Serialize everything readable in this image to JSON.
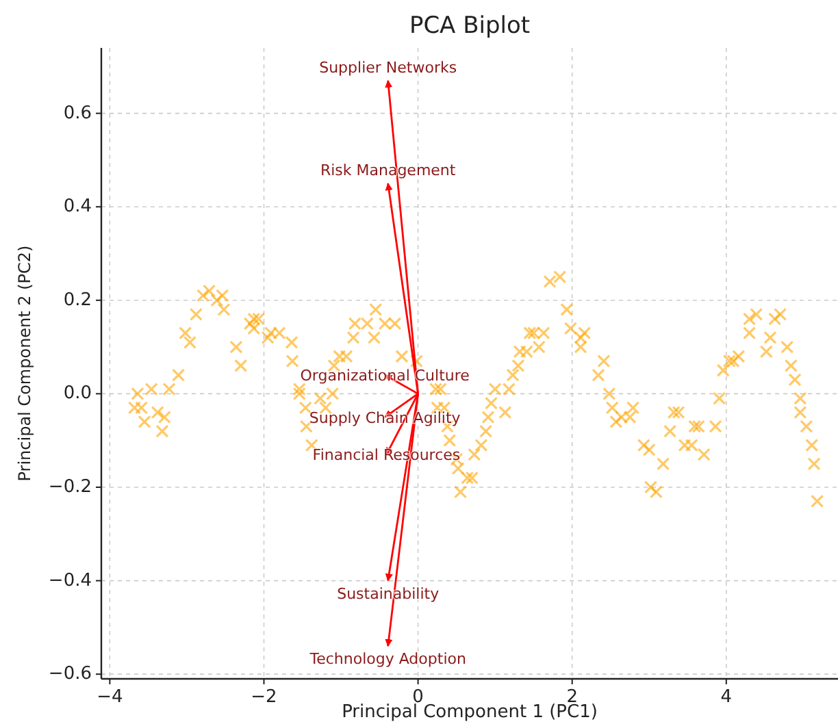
{
  "chart_data": {
    "type": "scatter",
    "title": "PCA Biplot",
    "xlabel": "Principal Component 1 (PC1)",
    "ylabel": "Principal Component 2 (PC2)",
    "xlim": [
      -4.11,
      5.45
    ],
    "ylim": [
      -0.61,
      0.74
    ],
    "xticks": [
      {
        "value": -4,
        "label": "−4"
      },
      {
        "value": -2,
        "label": "−2"
      },
      0,
      2,
      4
    ],
    "yticks": [
      {
        "value": -0.6,
        "label": "−0.6"
      },
      {
        "value": -0.4,
        "label": "−0.4"
      },
      {
        "value": -0.2,
        "label": "−0.2"
      },
      {
        "value": 0,
        "label": "0.0"
      },
      0.2,
      0.4,
      0.6
    ],
    "grid": true,
    "series": [
      {
        "color": "#ffa500",
        "marker": "cross",
        "x": [
          -3.64,
          -3.68,
          -3.59,
          -3.55,
          -3.38,
          -3.29,
          -3.32,
          -3.46,
          -3.23,
          -3.11,
          -3.02,
          -2.96,
          -2.88,
          -2.79,
          -2.71,
          -2.61,
          -2.54,
          -2.52,
          -2.36,
          -2.3,
          -2.18,
          -2.13,
          -2.07,
          -2.13,
          -1.95,
          -1.91,
          -1.8,
          -1.64,
          -1.63,
          -1.54,
          -1.54,
          -1.46,
          -1.45,
          -1.38,
          -1.27,
          -1.2,
          -1.11,
          -1.09,
          -1.02,
          -0.93,
          -0.84,
          -0.82,
          -0.66,
          -0.55,
          -0.57,
          -0.43,
          -0.3,
          -0.21,
          -0.02,
          0.23,
          0.29,
          0.25,
          0.34,
          0.38,
          0.41,
          0.5,
          0.52,
          0.55,
          0.64,
          0.7,
          0.73,
          0.82,
          0.88,
          0.91,
          0.95,
          1.0,
          1.13,
          1.18,
          1.23,
          1.3,
          1.32,
          1.41,
          1.45,
          1.5,
          1.57,
          1.63,
          1.71,
          1.84,
          1.93,
          1.98,
          2.11,
          2.16,
          2.11,
          2.34,
          2.41,
          2.48,
          2.52,
          2.57,
          2.64,
          2.75,
          2.79,
          2.93,
          3.0,
          3.02,
          3.09,
          3.18,
          3.27,
          3.32,
          3.38,
          3.46,
          3.55,
          3.59,
          3.64,
          3.71,
          3.86,
          3.91,
          3.96,
          4.04,
          4.09,
          4.16,
          4.3,
          4.3,
          4.39,
          4.52,
          4.57,
          4.63,
          4.7,
          4.79,
          4.84,
          4.89,
          4.96,
          4.96,
          5.04,
          5.11,
          5.14,
          5.18
        ],
        "values": [
          0.0,
          -0.03,
          -0.03,
          -0.06,
          -0.04,
          -0.05,
          -0.08,
          0.01,
          0.01,
          0.04,
          0.13,
          0.11,
          0.17,
          0.21,
          0.22,
          0.2,
          0.21,
          0.18,
          0.1,
          0.06,
          0.15,
          0.16,
          0.16,
          0.14,
          0.12,
          0.13,
          0.13,
          0.11,
          0.07,
          0.01,
          0.0,
          -0.03,
          -0.07,
          -0.11,
          -0.01,
          -0.03,
          0.0,
          0.06,
          0.08,
          0.08,
          0.12,
          0.15,
          0.15,
          0.18,
          0.12,
          0.15,
          0.15,
          0.08,
          0.07,
          0.01,
          0.01,
          -0.03,
          -0.03,
          -0.07,
          -0.1,
          -0.14,
          -0.16,
          -0.21,
          -0.18,
          -0.18,
          -0.13,
          -0.11,
          -0.08,
          -0.05,
          -0.02,
          0.01,
          -0.04,
          0.01,
          0.04,
          0.06,
          0.09,
          0.09,
          0.13,
          0.13,
          0.1,
          0.13,
          0.24,
          0.25,
          0.18,
          0.14,
          0.12,
          0.13,
          0.1,
          0.04,
          0.07,
          0.0,
          -0.03,
          -0.06,
          -0.05,
          -0.05,
          -0.03,
          -0.11,
          -0.12,
          -0.2,
          -0.21,
          -0.15,
          -0.08,
          -0.04,
          -0.04,
          -0.11,
          -0.11,
          -0.07,
          -0.07,
          -0.13,
          -0.07,
          -0.01,
          0.05,
          0.07,
          0.07,
          0.08,
          0.16,
          0.13,
          0.17,
          0.09,
          0.12,
          0.16,
          0.17,
          0.1,
          0.06,
          0.03,
          -0.01,
          -0.04,
          -0.07,
          -0.11,
          -0.15,
          -0.23
        ]
      },
      {
        "type": "line",
        "name": "Supplier Networks",
        "color": "#ff0000",
        "marker": "none",
        "x": [
          0,
          -0.39
        ],
        "values": [
          0,
          0.67
        ]
      },
      {
        "type": "line",
        "name": "Risk Management",
        "color": "#ff0000",
        "marker": "none",
        "x": [
          0,
          -0.39
        ],
        "values": [
          0,
          0.45
        ]
      },
      {
        "type": "line",
        "name": "Organizational Culture",
        "color": "#ff0000",
        "marker": "none",
        "x": [
          0,
          -0.43
        ],
        "values": [
          0,
          0.04
        ]
      },
      {
        "type": "line",
        "name": "Supply Chain Agility",
        "color": "#ff0000",
        "marker": "none",
        "x": [
          0,
          -0.43
        ],
        "values": [
          0,
          -0.05
        ]
      },
      {
        "type": "line",
        "name": "Financial Resources",
        "color": "#ff0000",
        "marker": "none",
        "x": [
          0,
          -0.41
        ],
        "values": [
          0,
          -0.13
        ]
      },
      {
        "type": "line",
        "name": "Sustainability",
        "color": "#ff0000",
        "marker": "none",
        "x": [
          0,
          -0.39
        ],
        "values": [
          0,
          -0.4
        ]
      },
      {
        "type": "line",
        "name": "Technology Adoption",
        "color": "#ff0000",
        "marker": "none",
        "x": [
          0,
          -0.39
        ],
        "values": [
          0,
          -0.54
        ]
      }
    ]
  }
}
